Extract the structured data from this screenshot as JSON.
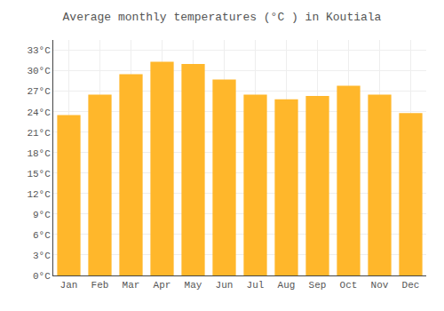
{
  "chart_data": {
    "type": "bar",
    "title": "Average monthly temperatures (°C ) in Koutiala",
    "categories": [
      "Jan",
      "Feb",
      "Mar",
      "Apr",
      "May",
      "Jun",
      "Jul",
      "Aug",
      "Sep",
      "Oct",
      "Nov",
      "Dec"
    ],
    "values": [
      23.5,
      26.5,
      29.5,
      31.3,
      31.0,
      28.7,
      26.5,
      25.8,
      26.3,
      27.8,
      26.5,
      23.8
    ],
    "color": "#FFB72B",
    "ylim": [
      0,
      34.5
    ],
    "yticks": [
      {
        "value": 0,
        "label": "0°C"
      },
      {
        "value": 3,
        "label": "3°C"
      },
      {
        "value": 6,
        "label": "6°C"
      },
      {
        "value": 9,
        "label": "9°C"
      },
      {
        "value": 12,
        "label": "12°C"
      },
      {
        "value": 15,
        "label": "15°C"
      },
      {
        "value": 18,
        "label": "18°C"
      },
      {
        "value": 21,
        "label": "21°C"
      },
      {
        "value": 24,
        "label": "24°C"
      },
      {
        "value": 27,
        "label": "27°C"
      },
      {
        "value": 30,
        "label": "30°C"
      },
      {
        "value": 33,
        "label": "33°C"
      }
    ],
    "grid": true
  }
}
